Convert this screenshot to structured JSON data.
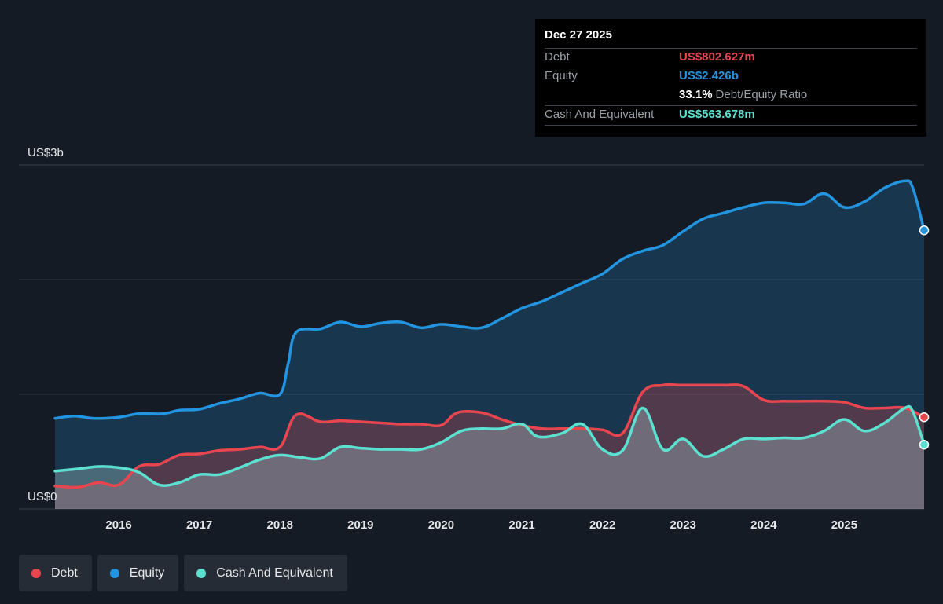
{
  "colors": {
    "debt": "#e8464f",
    "equity": "#2394df",
    "cash": "#5ce0d0",
    "grid": "#2e3440",
    "axis_text": "#e6e8eb"
  },
  "tooltip": {
    "date": "Dec 27 2025",
    "debt_label": "Debt",
    "debt_value": "US$802.627m",
    "equity_label": "Equity",
    "equity_value": "US$2.426b",
    "ratio_value": "33.1%",
    "ratio_label": "Debt/Equity Ratio",
    "cash_label": "Cash And Equivalent",
    "cash_value": "US$563.678m"
  },
  "legend": [
    {
      "label": "Debt",
      "color": "#e8464f"
    },
    {
      "label": "Equity",
      "color": "#2394df"
    },
    {
      "label": "Cash And Equivalent",
      "color": "#5ce0d0"
    }
  ],
  "chart_data": {
    "type": "area",
    "ylim": [
      0,
      3
    ],
    "y_unit": "US$ billions",
    "y_tick_labels": [
      {
        "value": 3,
        "label": "US$3b"
      },
      {
        "value": 0,
        "label": "US$0"
      }
    ],
    "xlim": [
      2015.21,
      2025.99
    ],
    "x_ticks": [
      2016,
      2017,
      2018,
      2019,
      2020,
      2021,
      2022,
      2023,
      2024,
      2025
    ],
    "grid": true,
    "legend_position": "bottom-left",
    "series": [
      {
        "name": "Equity",
        "points": [
          [
            2015.21,
            0.79
          ],
          [
            2015.45,
            0.81
          ],
          [
            2015.7,
            0.79
          ],
          [
            2016.0,
            0.8
          ],
          [
            2016.25,
            0.83
          ],
          [
            2016.55,
            0.83
          ],
          [
            2016.75,
            0.86
          ],
          [
            2017.0,
            0.87
          ],
          [
            2017.25,
            0.92
          ],
          [
            2017.5,
            0.96
          ],
          [
            2017.75,
            1.01
          ],
          [
            2018.0,
            1.0
          ],
          [
            2018.1,
            1.26
          ],
          [
            2018.2,
            1.54
          ],
          [
            2018.5,
            1.57
          ],
          [
            2018.75,
            1.63
          ],
          [
            2019.0,
            1.59
          ],
          [
            2019.25,
            1.62
          ],
          [
            2019.5,
            1.63
          ],
          [
            2019.75,
            1.58
          ],
          [
            2020.0,
            1.61
          ],
          [
            2020.25,
            1.59
          ],
          [
            2020.5,
            1.58
          ],
          [
            2020.75,
            1.66
          ],
          [
            2021.0,
            1.75
          ],
          [
            2021.25,
            1.81
          ],
          [
            2021.5,
            1.89
          ],
          [
            2021.75,
            1.97
          ],
          [
            2022.0,
            2.05
          ],
          [
            2022.25,
            2.18
          ],
          [
            2022.5,
            2.25
          ],
          [
            2022.75,
            2.3
          ],
          [
            2023.0,
            2.42
          ],
          [
            2023.25,
            2.53
          ],
          [
            2023.5,
            2.58
          ],
          [
            2023.75,
            2.63
          ],
          [
            2024.0,
            2.67
          ],
          [
            2024.25,
            2.67
          ],
          [
            2024.5,
            2.66
          ],
          [
            2024.75,
            2.75
          ],
          [
            2025.0,
            2.63
          ],
          [
            2025.25,
            2.68
          ],
          [
            2025.5,
            2.8
          ],
          [
            2025.75,
            2.86
          ],
          [
            2025.85,
            2.8
          ],
          [
            2025.99,
            2.43
          ]
        ]
      },
      {
        "name": "Debt",
        "points": [
          [
            2015.21,
            0.2
          ],
          [
            2015.5,
            0.19
          ],
          [
            2015.75,
            0.23
          ],
          [
            2016.0,
            0.21
          ],
          [
            2016.25,
            0.37
          ],
          [
            2016.5,
            0.39
          ],
          [
            2016.75,
            0.47
          ],
          [
            2017.0,
            0.48
          ],
          [
            2017.25,
            0.51
          ],
          [
            2017.5,
            0.52
          ],
          [
            2017.75,
            0.54
          ],
          [
            2018.0,
            0.54
          ],
          [
            2018.2,
            0.82
          ],
          [
            2018.5,
            0.76
          ],
          [
            2018.75,
            0.77
          ],
          [
            2019.0,
            0.76
          ],
          [
            2019.25,
            0.75
          ],
          [
            2019.5,
            0.74
          ],
          [
            2019.75,
            0.74
          ],
          [
            2020.0,
            0.73
          ],
          [
            2020.2,
            0.84
          ],
          [
            2020.5,
            0.84
          ],
          [
            2020.75,
            0.78
          ],
          [
            2021.0,
            0.73
          ],
          [
            2021.25,
            0.7
          ],
          [
            2021.5,
            0.7
          ],
          [
            2021.75,
            0.7
          ],
          [
            2022.0,
            0.69
          ],
          [
            2022.25,
            0.66
          ],
          [
            2022.5,
            1.02
          ],
          [
            2022.75,
            1.08
          ],
          [
            2023.0,
            1.08
          ],
          [
            2023.5,
            1.08
          ],
          [
            2023.75,
            1.07
          ],
          [
            2024.0,
            0.95
          ],
          [
            2024.25,
            0.94
          ],
          [
            2024.5,
            0.94
          ],
          [
            2024.75,
            0.94
          ],
          [
            2025.0,
            0.93
          ],
          [
            2025.25,
            0.88
          ],
          [
            2025.5,
            0.88
          ],
          [
            2025.75,
            0.88
          ],
          [
            2025.99,
            0.8
          ]
        ]
      },
      {
        "name": "Cash And Equivalent",
        "points": [
          [
            2015.21,
            0.33
          ],
          [
            2015.5,
            0.35
          ],
          [
            2015.75,
            0.37
          ],
          [
            2016.0,
            0.36
          ],
          [
            2016.25,
            0.32
          ],
          [
            2016.5,
            0.21
          ],
          [
            2016.75,
            0.23
          ],
          [
            2017.0,
            0.3
          ],
          [
            2017.25,
            0.3
          ],
          [
            2017.5,
            0.36
          ],
          [
            2017.75,
            0.43
          ],
          [
            2018.0,
            0.47
          ],
          [
            2018.25,
            0.45
          ],
          [
            2018.5,
            0.44
          ],
          [
            2018.75,
            0.54
          ],
          [
            2019.0,
            0.53
          ],
          [
            2019.25,
            0.52
          ],
          [
            2019.5,
            0.52
          ],
          [
            2019.75,
            0.52
          ],
          [
            2020.0,
            0.58
          ],
          [
            2020.25,
            0.68
          ],
          [
            2020.5,
            0.7
          ],
          [
            2020.75,
            0.7
          ],
          [
            2021.0,
            0.74
          ],
          [
            2021.2,
            0.63
          ],
          [
            2021.5,
            0.66
          ],
          [
            2021.75,
            0.74
          ],
          [
            2022.0,
            0.52
          ],
          [
            2022.25,
            0.51
          ],
          [
            2022.5,
            0.88
          ],
          [
            2022.75,
            0.52
          ],
          [
            2023.0,
            0.61
          ],
          [
            2023.25,
            0.46
          ],
          [
            2023.5,
            0.52
          ],
          [
            2023.75,
            0.61
          ],
          [
            2024.0,
            0.61
          ],
          [
            2024.25,
            0.62
          ],
          [
            2024.5,
            0.62
          ],
          [
            2024.75,
            0.68
          ],
          [
            2025.0,
            0.78
          ],
          [
            2025.25,
            0.68
          ],
          [
            2025.5,
            0.75
          ],
          [
            2025.75,
            0.88
          ],
          [
            2025.85,
            0.85
          ],
          [
            2025.99,
            0.56
          ]
        ]
      }
    ]
  }
}
